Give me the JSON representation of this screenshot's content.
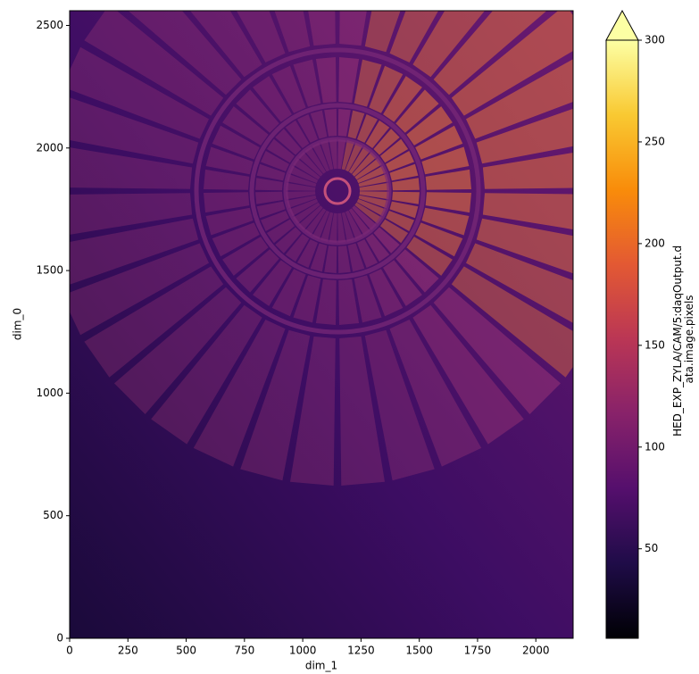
{
  "chart_data": {
    "type": "image",
    "xlabel": "dim_1",
    "ylabel": "dim_0",
    "xlim": [
      0,
      2160
    ],
    "ylim": [
      0,
      2560
    ],
    "xticks": [
      0,
      250,
      500,
      750,
      1000,
      1250,
      1500,
      1750,
      2000
    ],
    "yticks": [
      0,
      500,
      1000,
      1500,
      2000,
      2500
    ],
    "colormap": "inferno",
    "colorbar": {
      "label": [
        "HED_EXP_ZYLA/CAM/5:daqOutput.d",
        "ata.image.pixels"
      ],
      "clim": [
        6,
        300
      ],
      "ticks": [
        50,
        100,
        150,
        200,
        250,
        300
      ],
      "extend": "max"
    }
  }
}
